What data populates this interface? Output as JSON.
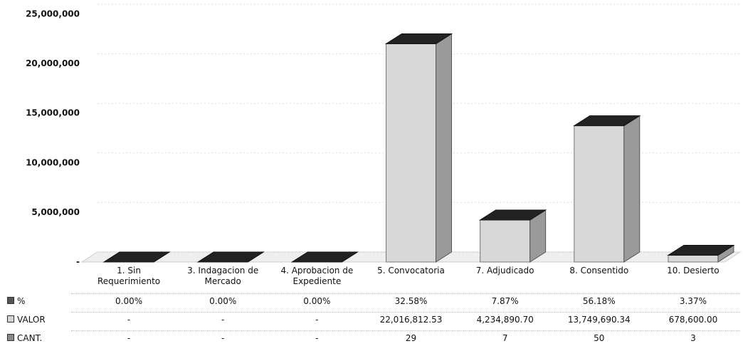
{
  "chart_data": {
    "type": "bar3d",
    "categories": [
      "1. Sin Requerimiento",
      "3. Indagacion de Mercado",
      "4. Aprobacion de Expediente",
      "5. Convocatoria",
      "7. Adjudicado",
      "8. Consentido",
      "10. Desierto"
    ],
    "series": [
      {
        "name": "%",
        "color": "#555555",
        "values": [
          0,
          0,
          0,
          32.58,
          7.87,
          56.18,
          3.37
        ],
        "value_labels": [
          "0.00%",
          "0.00%",
          "0.00%",
          "32.58%",
          "7.87%",
          "56.18%",
          "3.37%"
        ]
      },
      {
        "name": "VALOR",
        "color": "#d4d4d4",
        "values": [
          0,
          0,
          0,
          22016812.53,
          4234890.7,
          13749690.34,
          678600.0
        ],
        "value_labels": [
          "-",
          "-",
          "-",
          "22,016,812.53",
          "4,234,890.70",
          "13,749,690.34",
          "678,600.00"
        ]
      },
      {
        "name": "CANT.",
        "color": "#888888",
        "values": [
          0,
          0,
          0,
          29,
          7,
          50,
          3
        ],
        "value_labels": [
          "-",
          "-",
          "-",
          "29",
          "7",
          "50",
          "3"
        ]
      }
    ],
    "bar_series": 1,
    "ylim": [
      0,
      25000000
    ],
    "yticks": [
      {
        "value": 0,
        "label": "-"
      },
      {
        "value": 5000000,
        "label": "5,000,000"
      },
      {
        "value": 10000000,
        "label": "10,000,000"
      },
      {
        "value": 15000000,
        "label": "15,000,000"
      },
      {
        "value": 20000000,
        "label": "20,000,000"
      },
      {
        "value": 25000000,
        "label": "25,000,000"
      }
    ],
    "grid": true
  }
}
